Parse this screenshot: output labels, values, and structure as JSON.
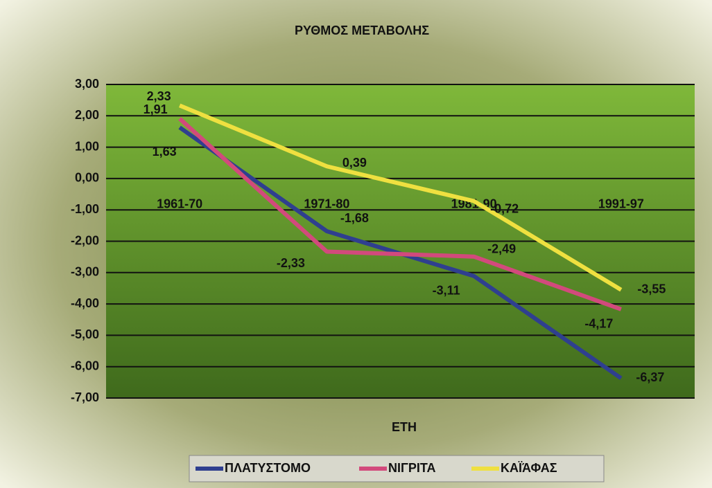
{
  "chart_data": {
    "type": "line",
    "title": "ΡΥΘΜΟΣ ΜΕΤΑΒΟΛΗΣ",
    "x_label": "ΕΤΗ",
    "categories": [
      "1961-70",
      "1971-80",
      "1981-90",
      "1991-97"
    ],
    "series": [
      {
        "name": "ΠΛΑΤΥΣΤΟΜΟ",
        "color": "#2f3f8f",
        "values": [
          1.63,
          -1.68,
          -3.11,
          -6.37
        ],
        "value_labels": [
          "1,63",
          "-1,68",
          "-3,11",
          "-6,37"
        ]
      },
      {
        "name": "ΝΙΓΡΙΤΑ",
        "color": "#d24a7c",
        "values": [
          1.91,
          -2.33,
          -2.49,
          -4.17
        ],
        "value_labels": [
          "1,91",
          "-2,33",
          "-2,49",
          "-4,17"
        ]
      },
      {
        "name": "ΚΑΪΆΦΑΣ",
        "color": "#efe040",
        "values": [
          2.33,
          0.39,
          -0.72,
          -3.55
        ],
        "value_labels": [
          "2,33",
          "0,39",
          "-0,72",
          "-3,55"
        ]
      }
    ],
    "ylim": [
      -7,
      3
    ],
    "yticks": [
      {
        "value": -7,
        "label": "-7,00"
      },
      {
        "value": -6,
        "label": "-6,00"
      },
      {
        "value": -5,
        "label": "-5,00"
      },
      {
        "value": -4,
        "label": "-4,00"
      },
      {
        "value": -3,
        "label": "-3,00"
      },
      {
        "value": -2,
        "label": "-2,00"
      },
      {
        "value": -1,
        "label": "-1,00"
      },
      {
        "value": 0,
        "label": "0,00"
      },
      {
        "value": 1,
        "label": "1,00"
      },
      {
        "value": 2,
        "label": "2,00"
      },
      {
        "value": 3,
        "label": "3,00"
      }
    ],
    "grid": true,
    "legend": "bottom"
  }
}
